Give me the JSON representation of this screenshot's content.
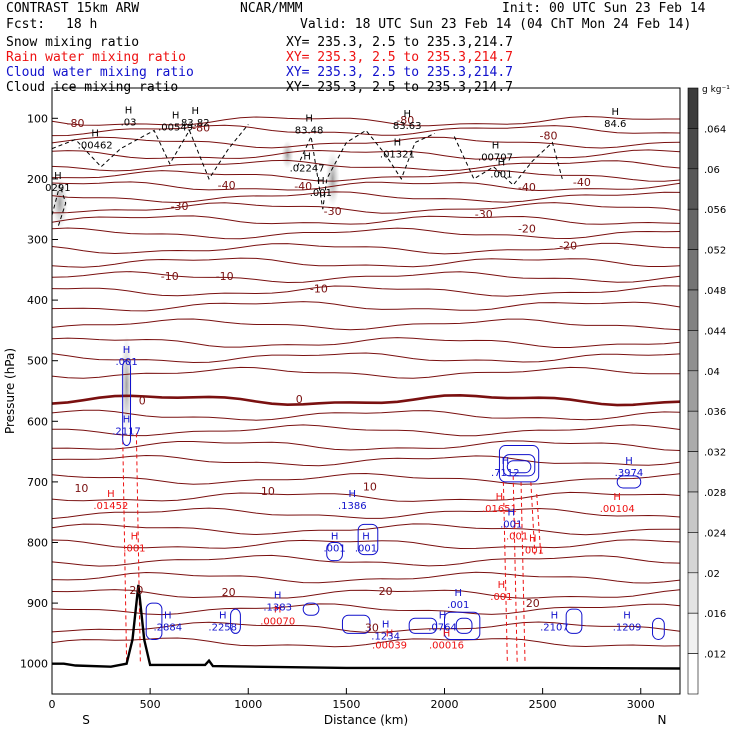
{
  "header": {
    "model": "CONTRAST 15km ARW",
    "org": "NCAR/MMM",
    "init": "Init: 00 UTC Sun 23 Feb 14",
    "fcst_label": "Fcst:",
    "fcst_value": "18 h",
    "valid": "Valid: 18 UTC Sun 23 Feb 14 (04 ChT Mon 24 Feb 14)",
    "fields": [
      {
        "name": "Snow mixing ratio",
        "xy": "XY= 235.3,  2.5 to 235.3,214.7",
        "color": "#000000"
      },
      {
        "name": "Rain water mixing ratio",
        "xy": "XY= 235.3,  2.5 to 235.3,214.7",
        "color": "#ee1111"
      },
      {
        "name": "Cloud water mixing ratio",
        "xy": "XY= 235.3,  2.5 to 235.3,214.7",
        "color": "#1111cc"
      },
      {
        "name": "Cloud ice mixing ratio",
        "xy": "XY= 235.3,  2.5 to 235.3,214.7",
        "color": "#000000"
      }
    ]
  },
  "chart_data": {
    "type": "line",
    "title": "",
    "xlabel": "Distance (km)",
    "ylabel": "Pressure (hPa)",
    "xlim": [
      0,
      3200
    ],
    "ylim": [
      1050,
      50
    ],
    "xticks": [
      0,
      500,
      1000,
      1500,
      2000,
      2500,
      3000
    ],
    "yticks": [
      100,
      200,
      300,
      400,
      500,
      600,
      700,
      800,
      900,
      1000
    ],
    "x_end_labels": {
      "left": "S",
      "right": "N"
    },
    "colorbar": {
      "unit": "g kg⁻¹",
      "ticks": [
        ".012",
        ".016",
        ".02",
        ".024",
        ".028",
        ".032",
        ".036",
        ".04",
        ".044",
        ".048",
        ".052",
        ".056",
        ".06",
        ".064"
      ]
    },
    "temperature_labels": [
      {
        "x": 120,
        "p": 108,
        "t": "-80"
      },
      {
        "x": 760,
        "p": 115,
        "t": "-80"
      },
      {
        "x": 1800,
        "p": 103,
        "t": "-80"
      },
      {
        "x": 2530,
        "p": 128,
        "t": "-80"
      },
      {
        "x": 890,
        "p": 210,
        "t": "-40"
      },
      {
        "x": 1280,
        "p": 212,
        "t": "-40"
      },
      {
        "x": 2420,
        "p": 213,
        "t": "-40"
      },
      {
        "x": 2700,
        "p": 205,
        "t": "-40"
      },
      {
        "x": 650,
        "p": 245,
        "t": "-30"
      },
      {
        "x": 1430,
        "p": 253,
        "t": "-30"
      },
      {
        "x": 2200,
        "p": 258,
        "t": "-30"
      },
      {
        "x": 2420,
        "p": 282,
        "t": "-20"
      },
      {
        "x": 2630,
        "p": 310,
        "t": "-20"
      },
      {
        "x": 600,
        "p": 360,
        "t": "-10"
      },
      {
        "x": 880,
        "p": 360,
        "t": "-10"
      },
      {
        "x": 1360,
        "p": 381,
        "t": "-10"
      },
      {
        "x": 460,
        "p": 566,
        "t": "0"
      },
      {
        "x": 1260,
        "p": 563,
        "t": "0"
      },
      {
        "x": 150,
        "p": 710,
        "t": "10"
      },
      {
        "x": 1100,
        "p": 715,
        "t": "10"
      },
      {
        "x": 1620,
        "p": 708,
        "t": "10"
      },
      {
        "x": 900,
        "p": 882,
        "t": "20"
      },
      {
        "x": 430,
        "p": 878,
        "t": "20"
      },
      {
        "x": 1700,
        "p": 880,
        "t": "20"
      },
      {
        "x": 2450,
        "p": 900,
        "t": "20"
      },
      {
        "x": 1630,
        "p": 940,
        "t": "30"
      }
    ],
    "series": [
      {
        "name": "Snow mixing ratio",
        "maxima": [
          {
            "x": 390,
            "p": 112,
            "label": ".03"
          },
          {
            "x": 220,
            "p": 150,
            "label": ".00462"
          },
          {
            "x": 630,
            "p": 120,
            "label": ".00549"
          },
          {
            "x": 730,
            "p": 113,
            "label": "83.82"
          },
          {
            "x": 1310,
            "p": 125,
            "label": "83.48"
          },
          {
            "x": 1760,
            "p": 165,
            "label": ".01321"
          },
          {
            "x": 1810,
            "p": 118,
            "label": "83.63"
          },
          {
            "x": 2260,
            "p": 170,
            "label": ".00707"
          },
          {
            "x": 2290,
            "p": 198,
            "label": ".001"
          },
          {
            "x": 1300,
            "p": 188,
            "label": ".02247"
          },
          {
            "x": 1370,
            "p": 228,
            "label": ".001"
          },
          {
            "x": 30,
            "p": 220,
            "label": "0291"
          },
          {
            "x": 2870,
            "p": 114,
            "label": "84.6"
          }
        ]
      },
      {
        "name": "Rain water mixing ratio",
        "maxima": [
          {
            "x": 300,
            "p": 745,
            "label": ".01452"
          },
          {
            "x": 420,
            "p": 815,
            "label": ".001"
          },
          {
            "x": 1150,
            "p": 935,
            "label": ".00070"
          },
          {
            "x": 1720,
            "p": 975,
            "label": ".00039"
          },
          {
            "x": 2010,
            "p": 975,
            "label": ".00016"
          },
          {
            "x": 2280,
            "p": 750,
            "label": ".01651"
          },
          {
            "x": 2370,
            "p": 795,
            "label": ".001"
          },
          {
            "x": 2450,
            "p": 818,
            "label": ".001"
          },
          {
            "x": 2290,
            "p": 895,
            "label": ".001"
          },
          {
            "x": 2880,
            "p": 750,
            "label": ".00104"
          }
        ]
      },
      {
        "name": "Cloud water mixing ratio",
        "maxima": [
          {
            "x": 380,
            "p": 507,
            "label": ".001"
          },
          {
            "x": 380,
            "p": 622,
            "label": ".2117"
          },
          {
            "x": 1530,
            "p": 745,
            "label": ".1386"
          },
          {
            "x": 1440,
            "p": 815,
            "label": ".001"
          },
          {
            "x": 1600,
            "p": 815,
            "label": ".001"
          },
          {
            "x": 2310,
            "p": 690,
            "label": ".7112"
          },
          {
            "x": 2340,
            "p": 775,
            "label": ".001"
          },
          {
            "x": 2940,
            "p": 690,
            "label": ".3974"
          },
          {
            "x": 590,
            "p": 945,
            "label": ".2884"
          },
          {
            "x": 870,
            "p": 945,
            "label": ".2258"
          },
          {
            "x": 1150,
            "p": 912,
            "label": ".1383"
          },
          {
            "x": 1700,
            "p": 960,
            "label": ".1234"
          },
          {
            "x": 1990,
            "p": 945,
            "label": ".0764"
          },
          {
            "x": 2070,
            "p": 908,
            "label": ".001"
          },
          {
            "x": 2560,
            "p": 945,
            "label": ".2107"
          },
          {
            "x": 2930,
            "p": 945,
            "label": ".1209"
          }
        ]
      },
      {
        "name": "Cloud ice mixing ratio",
        "maxima": []
      }
    ]
  }
}
